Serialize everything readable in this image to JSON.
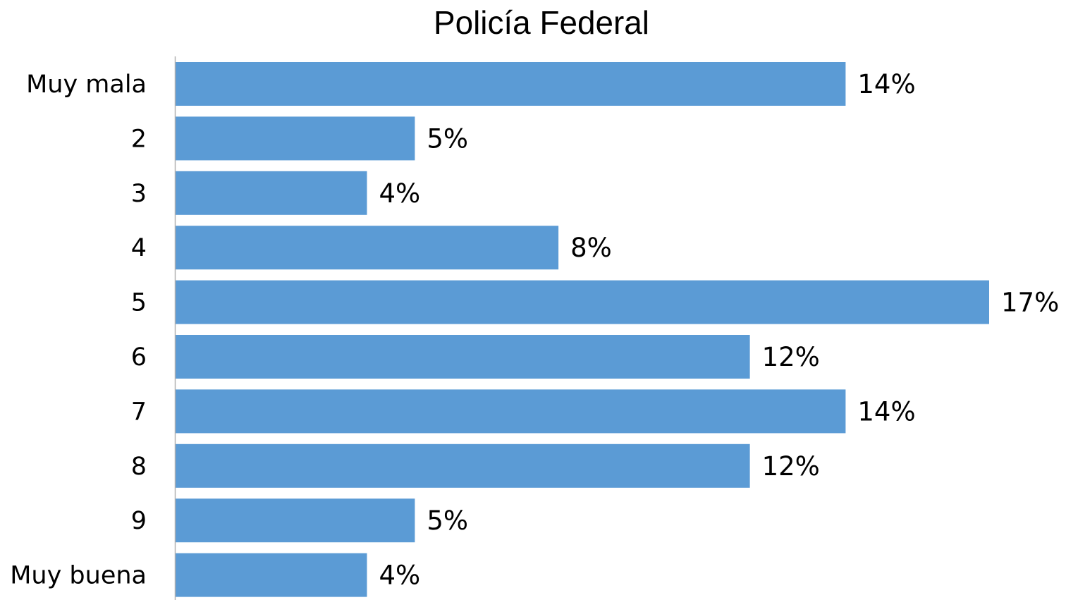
{
  "chart_data": {
    "type": "bar",
    "orientation": "horizontal",
    "title": "Policía Federal",
    "xlabel": "",
    "ylabel": "",
    "categories": [
      "Muy mala",
      "2",
      "3",
      "4",
      "5",
      "6",
      "7",
      "8",
      "9",
      "Muy buena"
    ],
    "values": [
      14,
      5,
      4,
      8,
      17,
      12,
      14,
      12,
      5,
      4
    ],
    "value_labels": [
      "14%",
      "5%",
      "4%",
      "8%",
      "17%",
      "12%",
      "14%",
      "12%",
      "5%",
      "4%"
    ],
    "unit": "%",
    "xlim": [
      0,
      17
    ],
    "grid": false,
    "legend": "none",
    "bar_color": "#5b9bd5",
    "axis_color": "#b0b0b0"
  }
}
